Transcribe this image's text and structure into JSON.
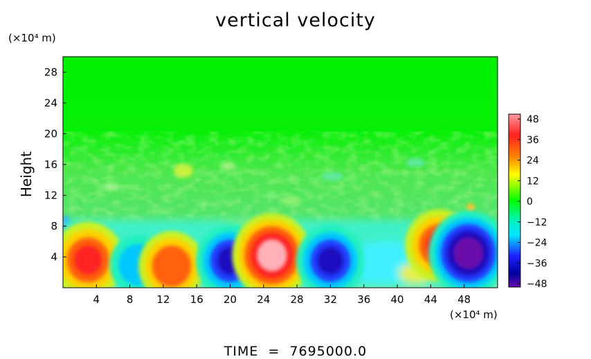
{
  "chart_data": {
    "type": "heatmap",
    "title": "vertical velocity",
    "ylabel": "Height",
    "x_unit": "(×10⁴ m)",
    "y_unit": "(×10⁴ m)",
    "xlim": [
      0,
      52
    ],
    "ylim": [
      0,
      30
    ],
    "x_ticks": [
      4,
      8,
      12,
      16,
      20,
      24,
      28,
      32,
      36,
      40,
      44,
      48
    ],
    "y_ticks": [
      4,
      8,
      12,
      16,
      20,
      24,
      28
    ],
    "colorbar": {
      "ticks": [
        48,
        36,
        24,
        12,
        0,
        -12,
        -24,
        -36,
        -48
      ],
      "range": [
        -48,
        48
      ],
      "colors": [
        "#6a0dab",
        "#2020ff",
        "#00e5ff",
        "#00ff00",
        "#ffff00",
        "#ff8800",
        "#ff2020",
        "#ff9aa0"
      ]
    },
    "features": [
      {
        "x": 3,
        "y": 3.6,
        "value": 40,
        "label": "updraft"
      },
      {
        "x": 9,
        "y": 3.0,
        "value": -24,
        "label": "downdraft"
      },
      {
        "x": 13,
        "y": 2.8,
        "value": 34,
        "label": "updraft"
      },
      {
        "x": 20,
        "y": 3.5,
        "value": -36,
        "label": "downdraft"
      },
      {
        "x": 25,
        "y": 4.2,
        "value": 48,
        "label": "updraft"
      },
      {
        "x": 32,
        "y": 3.5,
        "value": -36,
        "label": "downdraft"
      },
      {
        "x": 45,
        "y": 5.5,
        "value": 36,
        "label": "updraft"
      },
      {
        "x": 48.5,
        "y": 4.5,
        "value": -48,
        "label": "downdraft"
      }
    ]
  },
  "footer": {
    "time_label": "TIME",
    "equals": "=",
    "time_value": "7695000.0"
  }
}
